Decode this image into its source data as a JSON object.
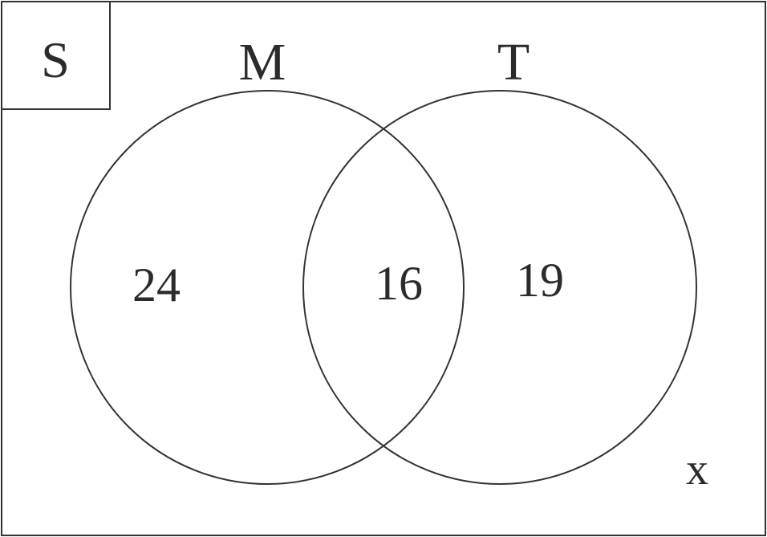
{
  "universal_set": {
    "label": "S"
  },
  "sets": {
    "left": {
      "label": "M"
    },
    "right": {
      "label": "T"
    }
  },
  "regions": {
    "only_left": "24",
    "both": "16",
    "only_right": "19",
    "outside": "x"
  },
  "colors": {
    "stroke": "#333333",
    "text": "#2b2b2b",
    "background": "#ffffff"
  }
}
